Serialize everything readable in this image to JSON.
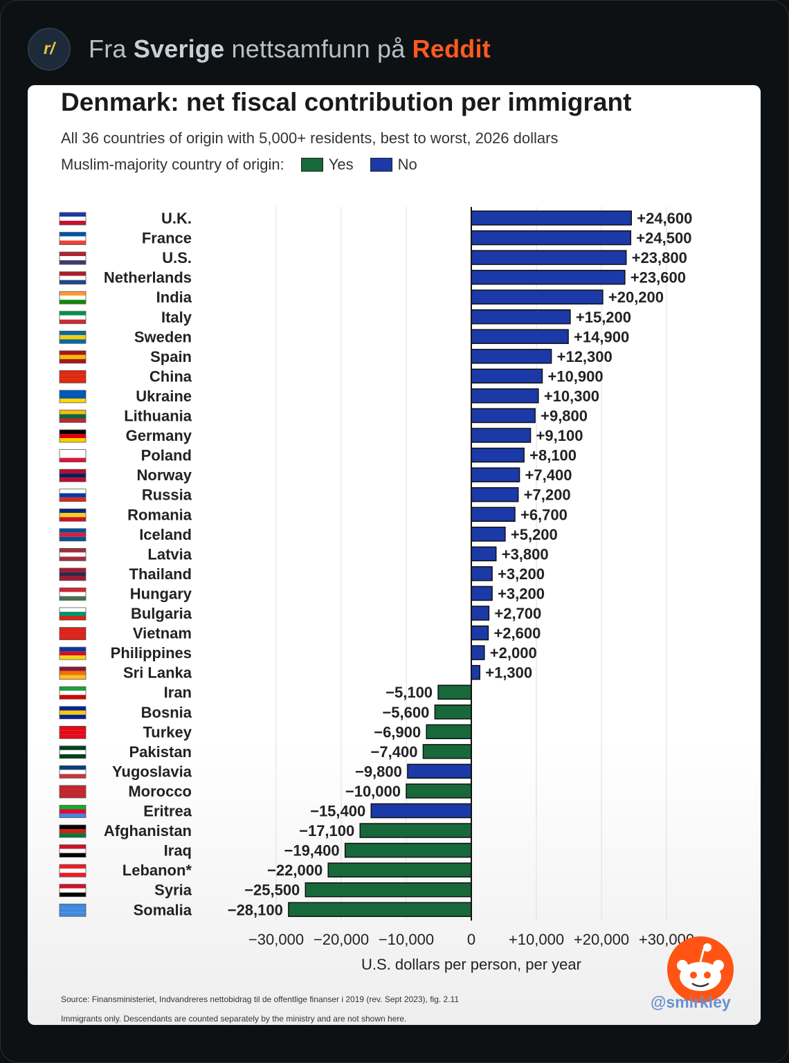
{
  "header": {
    "subreddit_icon": "r/",
    "prefix": "Fra ",
    "community": "Sverige",
    "middle": " nettsamfunn på ",
    "brand": "Reddit"
  },
  "chart_card": {
    "title": "Denmark: net fiscal contribution per immigrant",
    "subtitle": "All 36 countries of origin with 5,000+ residents, best to worst, 2026 dollars",
    "legend_label": "Muslim-majority country of origin:",
    "legend_yes": "Yes",
    "legend_no": "No",
    "source": "Source: Finansministeriet, Indvandreres nettobidrag til de offentlige finanser i 2019 (rev. Sept 2023), fig. 2.11",
    "note": "Immigrants only. Descendants are counted separately by the ministry and are not shown here.",
    "handle": "@smirkley"
  },
  "colors": {
    "yes": "#17693a",
    "no": "#1b3aa8",
    "grid": "#dedede"
  },
  "chart_data": {
    "type": "bar",
    "orientation": "horizontal",
    "title": "Denmark: net fiscal contribution per immigrant",
    "subtitle": "All 36 countries of origin with 5,000+ residents, best to worst, 2026 dollars",
    "xlabel": "U.S. dollars per person, per year",
    "xlim": [
      -30000,
      30000
    ],
    "xticks": [
      -30000,
      -20000,
      -10000,
      0,
      10000,
      20000,
      30000
    ],
    "xtick_labels": [
      "−30,000",
      "−20,000",
      "−10,000",
      "0",
      "+10,000",
      "+20,000",
      "+30,000"
    ],
    "grid": true,
    "legend": {
      "title": "Muslim-majority country of origin:",
      "entries": [
        {
          "name": "Yes",
          "color": "#17693a"
        },
        {
          "name": "No",
          "color": "#1b3aa8"
        }
      ],
      "placement": "top"
    },
    "categories": [
      "U.K.",
      "France",
      "U.S.",
      "Netherlands",
      "India",
      "Italy",
      "Sweden",
      "Spain",
      "China",
      "Ukraine",
      "Lithuania",
      "Germany",
      "Poland",
      "Norway",
      "Russia",
      "Romania",
      "Iceland",
      "Latvia",
      "Thailand",
      "Hungary",
      "Bulgaria",
      "Vietnam",
      "Philippines",
      "Sri Lanka",
      "Iran",
      "Bosnia",
      "Turkey",
      "Pakistan",
      "Yugoslavia",
      "Morocco",
      "Eritrea",
      "Afghanistan",
      "Iraq",
      "Lebanon*",
      "Syria",
      "Somalia"
    ],
    "values": [
      24600,
      24500,
      23800,
      23600,
      20200,
      15200,
      14900,
      12300,
      10900,
      10300,
      9800,
      9100,
      8100,
      7400,
      7200,
      6700,
      5200,
      3800,
      3200,
      3200,
      2700,
      2600,
      2000,
      1300,
      -5100,
      -5600,
      -6900,
      -7400,
      -9800,
      -10000,
      -15400,
      -17100,
      -19400,
      -22000,
      -25500,
      -28100
    ],
    "labels": [
      "+24,600",
      "+24,500",
      "+23,800",
      "+23,600",
      "+20,200",
      "+15,200",
      "+14,900",
      "+12,300",
      "+10,900",
      "+10,300",
      "+9,800",
      "+9,100",
      "+8,100",
      "+7,400",
      "+7,200",
      "+6,700",
      "+5,200",
      "+3,800",
      "+3,200",
      "+3,200",
      "+2,700",
      "+2,600",
      "+2,000",
      "+1,300",
      "−5,100",
      "−5,600",
      "−6,900",
      "−7,400",
      "−9,800",
      "−10,000",
      "−15,400",
      "−17,100",
      "−19,400",
      "−22,000",
      "−25,500",
      "−28,100"
    ],
    "muslim_majority": [
      false,
      false,
      false,
      false,
      false,
      false,
      false,
      false,
      false,
      false,
      false,
      false,
      false,
      false,
      false,
      false,
      false,
      false,
      false,
      false,
      false,
      false,
      false,
      false,
      true,
      true,
      true,
      true,
      false,
      true,
      false,
      true,
      true,
      true,
      true,
      true
    ],
    "flags": [
      [
        "#1b3aa8",
        "#ffffff",
        "#c8102e"
      ],
      [
        "#0055a4",
        "#ffffff",
        "#ef4135"
      ],
      [
        "#b22234",
        "#ffffff",
        "#3c3b6e"
      ],
      [
        "#ae1c28",
        "#ffffff",
        "#21468b"
      ],
      [
        "#ff9933",
        "#ffffff",
        "#138808"
      ],
      [
        "#009246",
        "#ffffff",
        "#ce2b37"
      ],
      [
        "#006aa7",
        "#fecc00",
        "#006aa7"
      ],
      [
        "#aa151b",
        "#f1bf00",
        "#aa151b"
      ],
      [
        "#de2910",
        "#de2910",
        "#de2910"
      ],
      [
        "#0057b7",
        "#0057b7",
        "#ffd700"
      ],
      [
        "#fdb913",
        "#006a44",
        "#c1272d"
      ],
      [
        "#000000",
        "#dd0000",
        "#ffce00"
      ],
      [
        "#ffffff",
        "#ffffff",
        "#dc143c"
      ],
      [
        "#ba0c2f",
        "#00205b",
        "#ba0c2f"
      ],
      [
        "#ffffff",
        "#0039a6",
        "#d52b1e"
      ],
      [
        "#002b7f",
        "#fcd116",
        "#ce1126"
      ],
      [
        "#02529c",
        "#dc1e35",
        "#02529c"
      ],
      [
        "#9e3039",
        "#ffffff",
        "#9e3039"
      ],
      [
        "#a51931",
        "#2d2a4a",
        "#a51931"
      ],
      [
        "#ce2939",
        "#ffffff",
        "#477050"
      ],
      [
        "#ffffff",
        "#00966e",
        "#d62612"
      ],
      [
        "#da251d",
        "#da251d",
        "#da251d"
      ],
      [
        "#0038a8",
        "#ce1126",
        "#fcd116"
      ],
      [
        "#8d153a",
        "#eb7400",
        "#ffbe29"
      ],
      [
        "#239f40",
        "#ffffff",
        "#da0000"
      ],
      [
        "#002395",
        "#fecb00",
        "#002395"
      ],
      [
        "#e30a17",
        "#e30a17",
        "#e30a17"
      ],
      [
        "#01411c",
        "#ffffff",
        "#01411c"
      ],
      [
        "#0c4076",
        "#ffffff",
        "#c6363c"
      ],
      [
        "#c1272d",
        "#c1272d",
        "#c1272d"
      ],
      [
        "#12ad2b",
        "#ea0437",
        "#4189dd"
      ],
      [
        "#000000",
        "#d32011",
        "#007a36"
      ],
      [
        "#ce1126",
        "#ffffff",
        "#000000"
      ],
      [
        "#ed1c24",
        "#ffffff",
        "#ed1c24"
      ],
      [
        "#ce1126",
        "#ffffff",
        "#000000"
      ],
      [
        "#4189dd",
        "#4189dd",
        "#4189dd"
      ]
    ]
  }
}
